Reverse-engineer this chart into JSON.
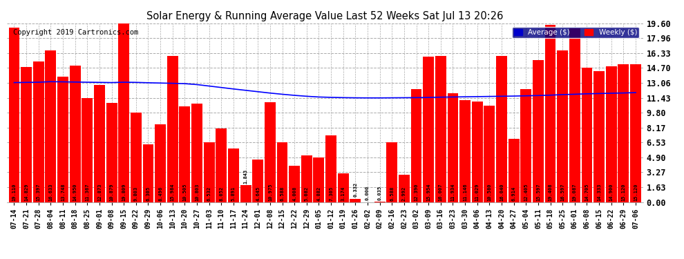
{
  "title": "Solar Energy & Running Average Value Last 52 Weeks Sat Jul 13 20:26",
  "copyright": "Copyright 2019 Cartronics.com",
  "bar_color": "#ff0000",
  "avg_line_color": "#0000ff",
  "background_color": "#ffffff",
  "plot_bg_color": "#ffffff",
  "ylim": [
    0,
    19.6
  ],
  "yticks": [
    0.0,
    1.63,
    3.27,
    4.9,
    6.53,
    8.17,
    9.8,
    11.43,
    13.06,
    14.7,
    16.33,
    17.96,
    19.6
  ],
  "legend_avg_color": "#0000cc",
  "legend_weekly_color": "#ff0000",
  "categories": [
    "07-14",
    "07-21",
    "07-28",
    "08-04",
    "08-11",
    "08-18",
    "08-25",
    "09-01",
    "09-08",
    "09-15",
    "09-22",
    "09-29",
    "10-06",
    "10-13",
    "10-20",
    "10-27",
    "11-03",
    "11-10",
    "11-17",
    "11-24",
    "12-01",
    "12-08",
    "12-15",
    "12-22",
    "12-29",
    "01-05",
    "01-12",
    "01-19",
    "01-26",
    "02-02",
    "02-09",
    "02-16",
    "02-23",
    "03-02",
    "03-09",
    "03-16",
    "03-23",
    "03-30",
    "04-06",
    "04-13",
    "04-20",
    "04-27",
    "05-04",
    "05-11",
    "05-18",
    "05-25",
    "06-01",
    "06-08",
    "06-15",
    "06-22",
    "06-29",
    "07-06"
  ],
  "weekly_values": [
    19.11,
    14.829,
    15.397,
    16.633,
    13.748,
    14.95,
    11.367,
    12.873,
    10.879,
    19.809,
    9.803,
    6.305,
    8.496,
    15.984,
    10.505,
    10.803,
    6.532,
    8.052,
    5.891,
    1.843,
    4.645,
    10.975,
    6.588,
    4.008,
    5.082,
    4.882,
    7.305,
    3.174,
    0.332,
    0.0,
    0.035,
    6.588,
    2.992,
    12.39,
    15.954,
    16.007,
    11.934,
    11.146,
    11.029,
    10.58,
    16.04,
    6.914,
    12.405,
    15.597,
    19.408,
    16.597,
    19.087,
    14.705,
    14.333,
    14.9,
    15.12,
    15.12
  ],
  "avg_values": [
    13.1,
    13.12,
    13.14,
    13.2,
    13.18,
    13.16,
    13.14,
    13.12,
    13.1,
    13.14,
    13.12,
    13.08,
    13.05,
    13.02,
    12.98,
    12.88,
    12.72,
    12.56,
    12.4,
    12.25,
    12.1,
    11.95,
    11.82,
    11.7,
    11.6,
    11.52,
    11.48,
    11.45,
    11.43,
    11.42,
    11.42,
    11.43,
    11.44,
    11.45,
    11.47,
    11.5,
    11.52,
    11.54,
    11.56,
    11.58,
    11.6,
    11.62,
    11.65,
    11.68,
    11.72,
    11.78,
    11.82,
    11.87,
    11.9,
    11.93,
    11.96,
    12.0
  ]
}
